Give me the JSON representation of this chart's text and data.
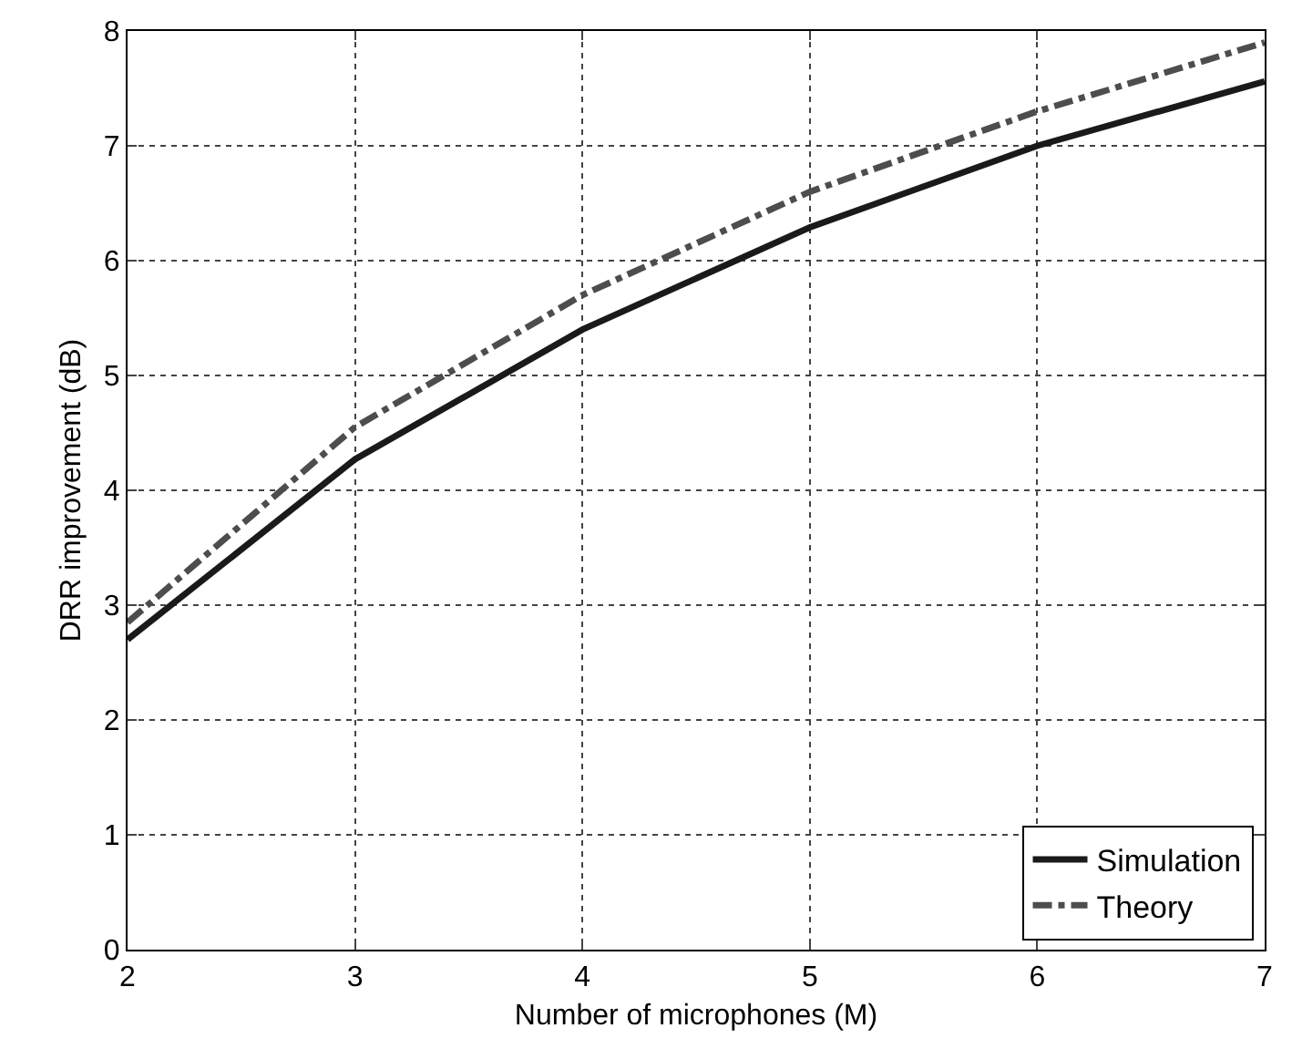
{
  "chart_data": {
    "type": "line",
    "xlabel": "Number of microphones (M)",
    "ylabel": "DRR improvement (dB)",
    "x": [
      2,
      3,
      4,
      5,
      6,
      7
    ],
    "series": [
      {
        "name": "Simulation",
        "color": "#1a1a1a",
        "values": [
          2.7,
          4.27,
          5.4,
          6.29,
          7.0,
          7.56
        ],
        "line_style": "solid"
      },
      {
        "name": "Theory",
        "color": "#4d4d4d",
        "values": [
          2.85,
          4.55,
          5.7,
          6.6,
          7.3,
          7.9
        ],
        "line_style": "dashdot"
      }
    ],
    "xlim": [
      2,
      7
    ],
    "ylim": [
      0,
      8
    ],
    "xticks": [
      2,
      3,
      4,
      5,
      6,
      7
    ],
    "yticks": [
      0,
      1,
      2,
      3,
      4,
      5,
      6,
      7,
      8
    ],
    "grid": true,
    "legend": "bottom right",
    "marker": "none"
  }
}
